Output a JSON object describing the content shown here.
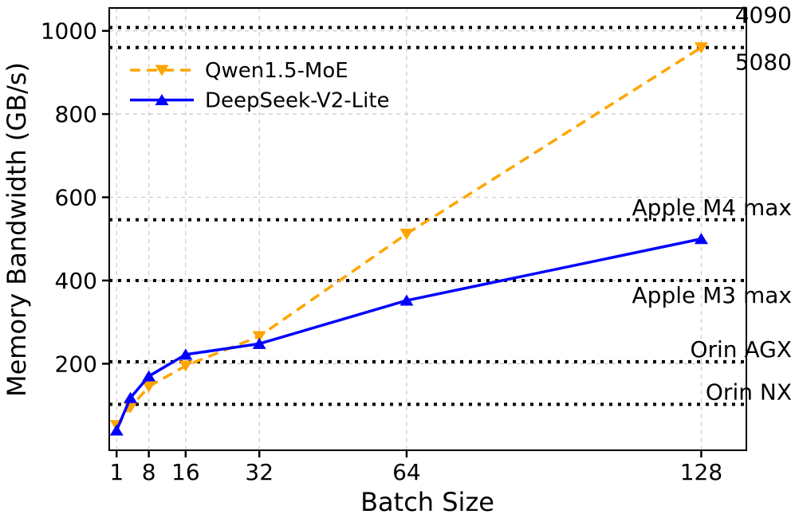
{
  "chart_data": {
    "type": "line",
    "title": "",
    "xlabel": "Batch Size",
    "ylabel": "Memory Bandwidth (GB/s)",
    "x": [
      1,
      4,
      8,
      16,
      32,
      64,
      128
    ],
    "series": [
      {
        "name": "Qwen1.5-MoE",
        "color": "#FFA500",
        "linestyle": "dashed",
        "marker": "triangle-down",
        "values": [
          52,
          95,
          145,
          195,
          266,
          512,
          960
        ]
      },
      {
        "name": "DeepSeek-V2-Lite",
        "color": "#0000FF",
        "linestyle": "solid",
        "marker": "triangle-up",
        "values": [
          40,
          118,
          170,
          222,
          248,
          352,
          500
        ]
      }
    ],
    "reference_lines": [
      {
        "label": "4090",
        "value": 1008,
        "label_side": "above",
        "color": "#000000"
      },
      {
        "label": "5080",
        "value": 960,
        "label_side": "below",
        "color": "#000000"
      },
      {
        "label": "Apple M4 max",
        "value": 546,
        "label_side": "above",
        "color": "#000000"
      },
      {
        "label": "Apple M3 max",
        "value": 400,
        "label_side": "below",
        "color": "#000000"
      },
      {
        "label": "Orin AGX",
        "value": 204.8,
        "label_side": "above",
        "color": "#000000"
      },
      {
        "label": "Orin NX",
        "value": 102.4,
        "label_side": "above",
        "color": "#000000"
      }
    ],
    "x_ticks": [
      1,
      8,
      16,
      32,
      64,
      128
    ],
    "y_ticks": [
      200,
      400,
      600,
      800,
      1000
    ],
    "xlim": [
      -0.6,
      137.8
    ],
    "ylim": [
      -8,
      1055
    ],
    "grid": true,
    "grid_color": "#c9c9c9",
    "legend_position": "upper-left",
    "legend_frame": false
  }
}
